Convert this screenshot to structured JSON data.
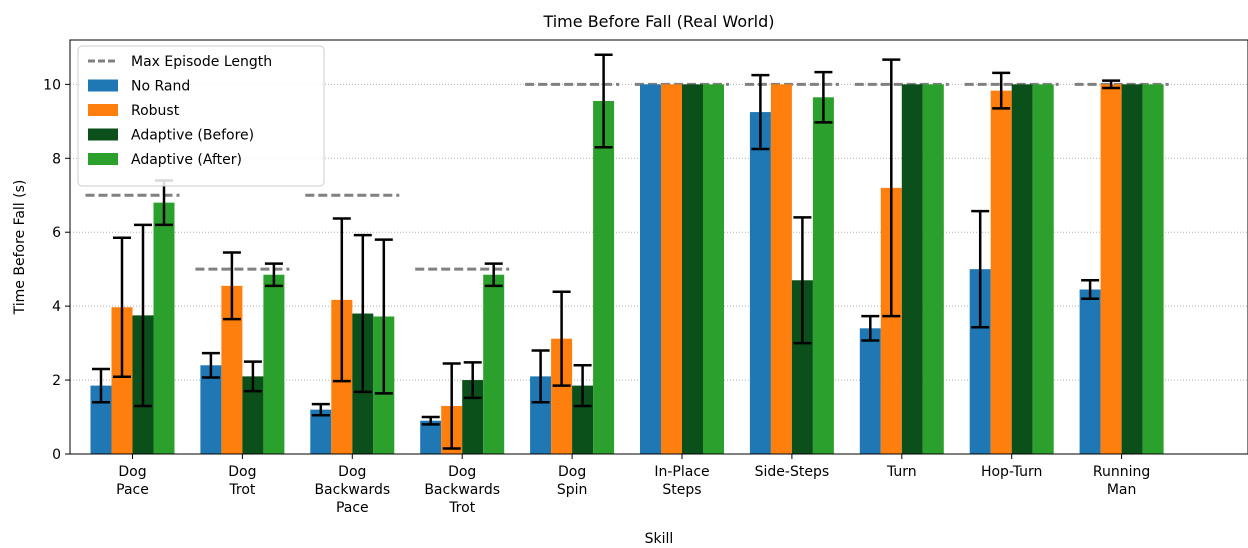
{
  "chart_data": {
    "type": "bar",
    "title": "Time Before Fall (Real World)",
    "xlabel": "Skill",
    "ylabel": "Time Before Fall (s)",
    "ylim": [
      0,
      11.2
    ],
    "yticks": [
      0,
      2,
      4,
      6,
      8,
      10
    ],
    "categories": [
      [
        "Dog",
        "Pace"
      ],
      [
        "Dog",
        "Trot"
      ],
      [
        "Dog",
        "Backwards",
        "Pace"
      ],
      [
        "Dog",
        "Backwards",
        "Trot"
      ],
      [
        "Dog",
        "Spin"
      ],
      [
        "In-Place",
        "Steps"
      ],
      [
        "Side-Steps"
      ],
      [
        "Turn"
      ],
      [
        "Hop-Turn"
      ],
      [
        "Running",
        "Man"
      ]
    ],
    "max_episode_length": {
      "name": "Max Episode Length",
      "values": [
        7,
        5,
        7,
        5,
        10,
        10,
        10,
        10,
        10,
        10
      ],
      "color": "#808080"
    },
    "series": [
      {
        "name": "No Rand",
        "color": "#1f77b4",
        "values": [
          1.85,
          2.4,
          1.2,
          0.9,
          2.1,
          10.0,
          9.25,
          3.4,
          5.0,
          4.45
        ],
        "errors": [
          0.45,
          0.33,
          0.15,
          0.1,
          0.7,
          0.0,
          1.0,
          0.33,
          1.57,
          0.25
        ]
      },
      {
        "name": "Robust",
        "color": "#ff7f0e",
        "values": [
          3.97,
          4.55,
          4.17,
          1.3,
          3.12,
          10.0,
          10.0,
          7.2,
          9.83,
          10.0
        ],
        "errors": [
          1.88,
          0.9,
          2.2,
          1.15,
          1.27,
          0.0,
          0.0,
          3.47,
          0.48,
          0.1
        ]
      },
      {
        "name": "Adaptive (Before)",
        "color": "#0b4f1b",
        "values": [
          3.75,
          2.1,
          3.8,
          2.0,
          1.85,
          10.0,
          4.7,
          10.0,
          10.0,
          10.0
        ],
        "errors": [
          2.45,
          0.4,
          2.12,
          0.48,
          0.55,
          0.0,
          1.7,
          0.0,
          0.0,
          0.0
        ]
      },
      {
        "name": "Adaptive (After)",
        "color": "#2ca02c",
        "values": [
          6.8,
          4.85,
          3.72,
          4.85,
          9.55,
          10.0,
          9.65,
          10.0,
          10.0,
          10.0
        ],
        "errors": [
          0.6,
          0.3,
          2.08,
          0.3,
          1.25,
          0.0,
          0.68,
          0.0,
          0.0,
          0.0
        ]
      }
    ],
    "grid": "horizontal dotted",
    "legend_position": "top-left"
  }
}
